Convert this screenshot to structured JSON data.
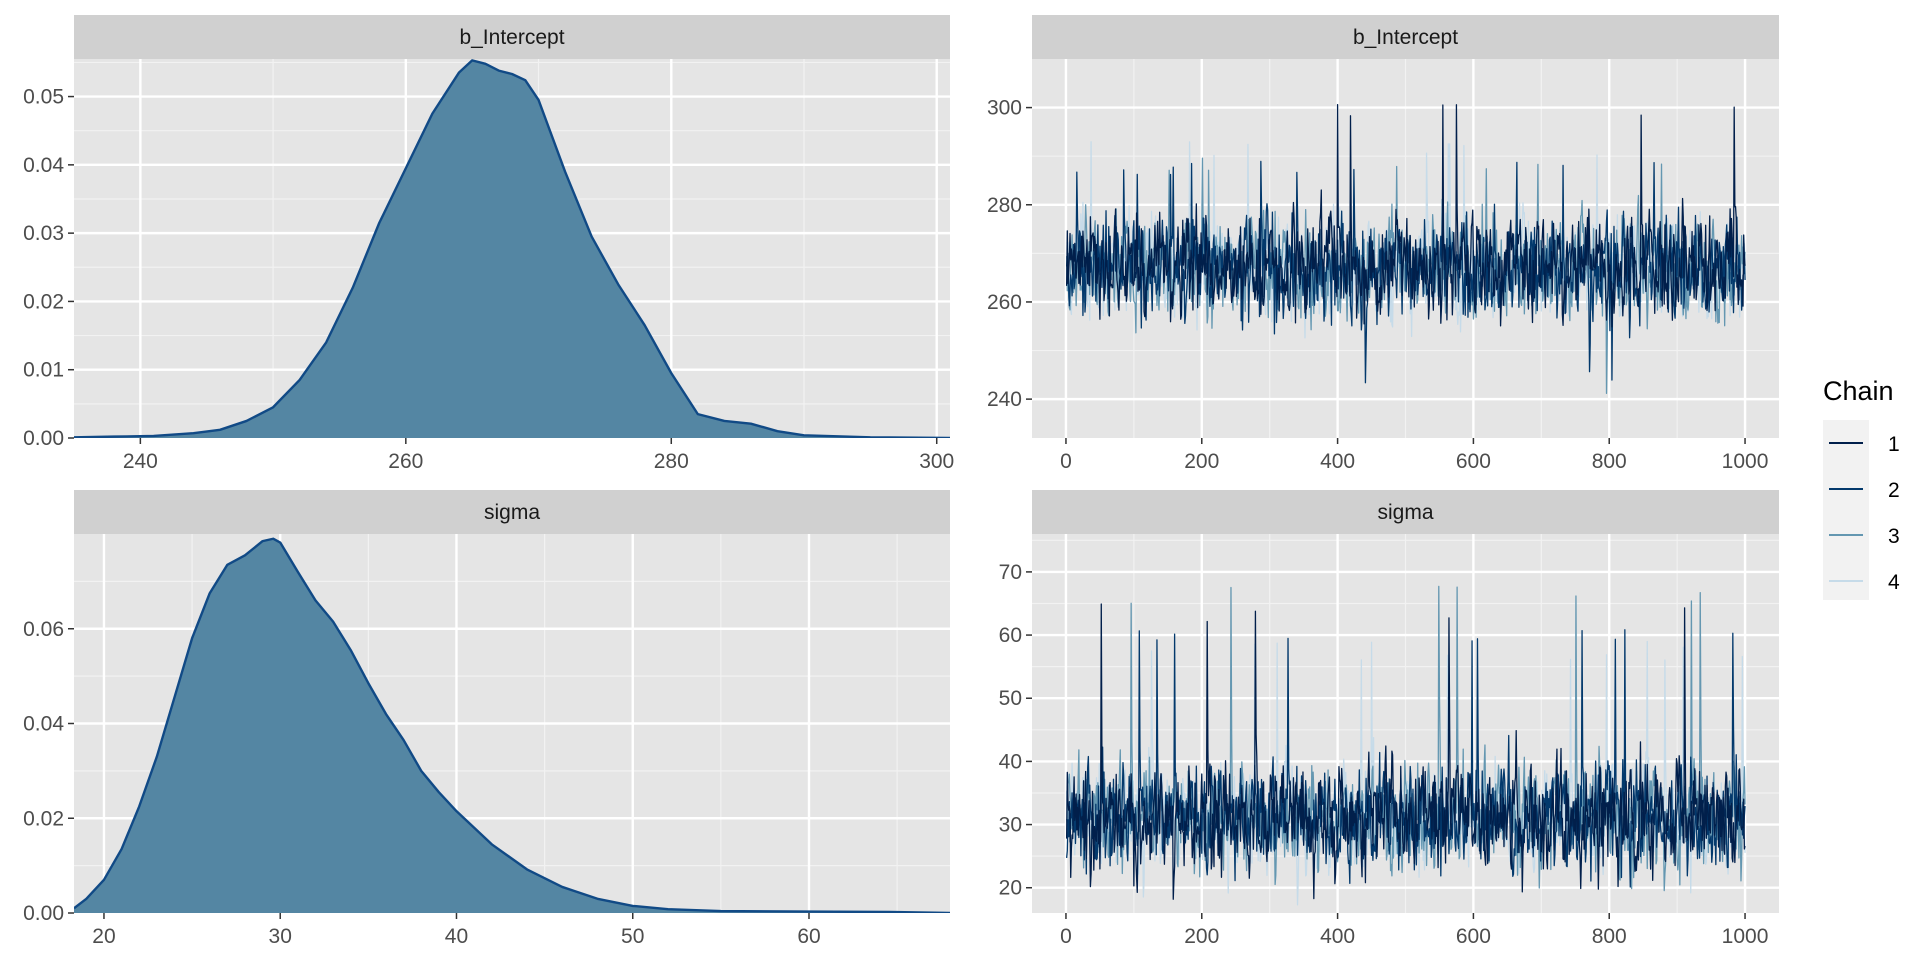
{
  "colors": {
    "panel_bg": "#e5e5e5",
    "strip_bg": "#d0d0d0",
    "grid_major": "#ffffff",
    "grid_minor": "#f2f2f2",
    "density_fill": "#5486a3",
    "density_line": "#114a86",
    "chain_colors": [
      "#011f4b",
      "#03396c",
      "#6497b1",
      "#c6dbe9"
    ]
  },
  "legend": {
    "title": "Chain",
    "labels": [
      "1",
      "2",
      "3",
      "4"
    ],
    "position": "right"
  },
  "chart_data": [
    {
      "type": "area",
      "panel": "density-b_Intercept",
      "title": "b_Intercept",
      "xlim": [
        235,
        301
      ],
      "ylim": [
        0,
        0.0555
      ],
      "xticks": [
        240,
        260,
        280,
        300
      ],
      "yticks": [
        0,
        0.01,
        0.02,
        0.03,
        0.04,
        0.05
      ],
      "ytick_labels": [
        "0.00",
        "0.01",
        "0.02",
        "0.03",
        "0.04",
        "0.05"
      ],
      "x": [
        235,
        238,
        241,
        244,
        246,
        248,
        250,
        252,
        254,
        256,
        258,
        260,
        262,
        264,
        265,
        266,
        267,
        268,
        269,
        270,
        272,
        274,
        276,
        278,
        280,
        282,
        284,
        286,
        288,
        290,
        295,
        301
      ],
      "y": [
        0.0001,
        0.0002,
        0.0003,
        0.0007,
        0.0012,
        0.0025,
        0.0045,
        0.0085,
        0.014,
        0.022,
        0.0315,
        0.0395,
        0.0475,
        0.0535,
        0.0553,
        0.0548,
        0.0538,
        0.0533,
        0.0524,
        0.0495,
        0.039,
        0.0295,
        0.0225,
        0.0165,
        0.0095,
        0.0035,
        0.0025,
        0.0021,
        0.001,
        0.0004,
        0.0001,
        0.0
      ]
    },
    {
      "type": "line",
      "panel": "trace-b_Intercept",
      "title": "b_Intercept",
      "xlim": [
        -50,
        1050
      ],
      "ylim": [
        232,
        310
      ],
      "xticks": [
        0,
        200,
        400,
        600,
        800,
        1000
      ],
      "yticks": [
        240,
        260,
        280,
        300
      ],
      "iterations": 1000,
      "chain_center": 267,
      "chain_spread": 6.5,
      "series": [
        {
          "name": "1",
          "approx_range": [
            237,
            301
          ]
        },
        {
          "name": "2",
          "approx_range": [
            243,
            289
          ]
        },
        {
          "name": "3",
          "approx_range": [
            239,
            290
          ]
        },
        {
          "name": "4",
          "approx_range": [
            235,
            293
          ]
        }
      ]
    },
    {
      "type": "area",
      "panel": "density-sigma",
      "title": "sigma",
      "xlim": [
        18.3,
        68
      ],
      "ylim": [
        0,
        0.08
      ],
      "xticks": [
        20,
        30,
        40,
        50,
        60
      ],
      "yticks": [
        0,
        0.02,
        0.04,
        0.06
      ],
      "ytick_labels": [
        "0.00",
        "0.02",
        "0.04",
        "0.06"
      ],
      "x": [
        18.3,
        19,
        20,
        21,
        22,
        23,
        24,
        25,
        26,
        27,
        28,
        29,
        29.6,
        30,
        31,
        32,
        33,
        34,
        35,
        36,
        37,
        38,
        39,
        40,
        42,
        44,
        46,
        48,
        50,
        52,
        55,
        60,
        65,
        68
      ],
      "y": [
        0.001,
        0.003,
        0.007,
        0.0135,
        0.0225,
        0.033,
        0.0455,
        0.058,
        0.0675,
        0.0735,
        0.0755,
        0.0785,
        0.079,
        0.0782,
        0.072,
        0.066,
        0.0615,
        0.0555,
        0.0485,
        0.042,
        0.0365,
        0.03,
        0.0255,
        0.0215,
        0.0145,
        0.0092,
        0.0055,
        0.003,
        0.0015,
        0.0008,
        0.0004,
        0.0003,
        0.0002,
        0.0
      ]
    },
    {
      "type": "line",
      "panel": "trace-sigma",
      "title": "sigma",
      "xlim": [
        -50,
        1050
      ],
      "ylim": [
        16,
        76
      ],
      "xticks": [
        0,
        200,
        400,
        600,
        800,
        1000
      ],
      "yticks": [
        20,
        30,
        40,
        50,
        60,
        70
      ],
      "iterations": 1000,
      "chain_center": 31,
      "chain_spread": 5,
      "series": [
        {
          "name": "1",
          "approx_range": [
            18,
            65
          ]
        },
        {
          "name": "2",
          "approx_range": [
            19,
            62
          ]
        },
        {
          "name": "3",
          "approx_range": [
            19,
            68
          ]
        },
        {
          "name": "4",
          "approx_range": [
            17,
            59
          ]
        }
      ]
    }
  ]
}
